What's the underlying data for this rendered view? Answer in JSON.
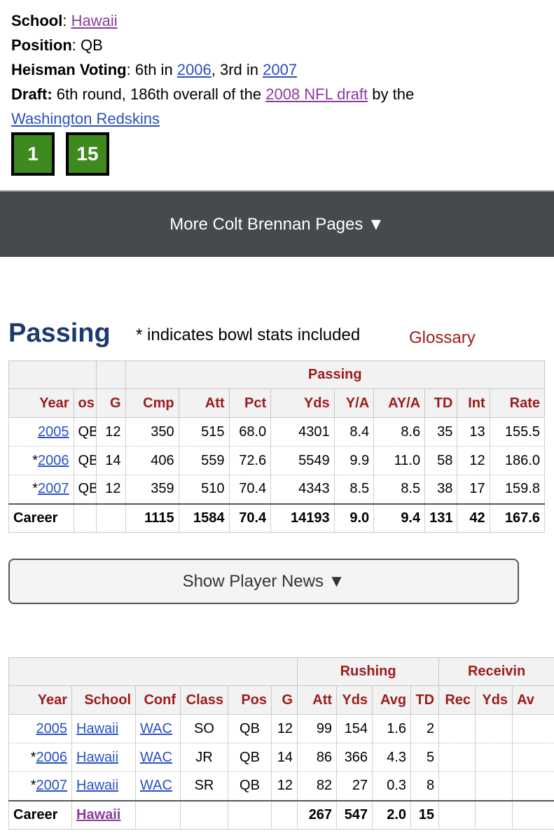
{
  "player": {
    "school_label": "School",
    "school": "Hawaii",
    "position_label": "Position",
    "position": "QB",
    "heisman_label": "Heisman Voting",
    "heisman_prefix1": "6th in ",
    "heisman_year1": "2006",
    "heisman_prefix2": ", 3rd in ",
    "heisman_year2": "2007",
    "draft_label": "Draft:",
    "draft_text": " 6th round, 186th overall of the ",
    "draft_link": "2008 NFL draft",
    "draft_by": " by the",
    "draft_team": "Washington Redskins",
    "badges": [
      "1",
      "15"
    ]
  },
  "more_pages": {
    "label": "More Colt Brennan Pages ▼"
  },
  "passing_section": {
    "title": "Passing",
    "note": "* indicates bowl stats included",
    "glossary": "Glossary"
  },
  "passing_table": {
    "over_header": "Passing",
    "headers": [
      "Year",
      "os",
      "G",
      "Cmp",
      "Att",
      "Pct",
      "Yds",
      "Y/A",
      "AY/A",
      "TD",
      "Int",
      "Rate"
    ],
    "rows": [
      {
        "mark": "",
        "year": "2005",
        "pos": "QB",
        "g": "12",
        "cmp": "350",
        "att": "515",
        "pct": "68.0",
        "yds": "4301",
        "ya": "8.4",
        "aya": "8.6",
        "td": "35",
        "int": "13",
        "rate": "155.5"
      },
      {
        "mark": "*",
        "year": "2006",
        "pos": "QB",
        "g": "14",
        "cmp": "406",
        "att": "559",
        "pct": "72.6",
        "yds": "5549",
        "ya": "9.9",
        "aya": "11.0",
        "td": "58",
        "int": "12",
        "rate": "186.0"
      },
      {
        "mark": "*",
        "year": "2007",
        "pos": "QB",
        "g": "12",
        "cmp": "359",
        "att": "510",
        "pct": "70.4",
        "yds": "4343",
        "ya": "8.5",
        "aya": "8.5",
        "td": "38",
        "int": "17",
        "rate": "159.8"
      }
    ],
    "career": {
      "label": "Career",
      "cmp": "1115",
      "att": "1584",
      "pct": "70.4",
      "yds": "14193",
      "ya": "9.0",
      "aya": "9.4",
      "td": "131",
      "int": "42",
      "rate": "167.6"
    }
  },
  "news_button": {
    "label": "Show Player News ▼"
  },
  "rushing_table": {
    "over_rushing": "Rushing",
    "over_receiving": "Receivin",
    "headers": [
      "Year",
      "School",
      "Conf",
      "Class",
      "Pos",
      "G",
      "Att",
      "Yds",
      "Avg",
      "TD",
      "Rec",
      "Yds",
      "Av"
    ],
    "rows": [
      {
        "mark": "",
        "year": "2005",
        "school": "Hawaii",
        "conf": "WAC",
        "class": "SO",
        "pos": "QB",
        "g": "12",
        "att": "99",
        "yds": "154",
        "avg": "1.6",
        "td": "2"
      },
      {
        "mark": "*",
        "year": "2006",
        "school": "Hawaii",
        "conf": "WAC",
        "class": "JR",
        "pos": "QB",
        "g": "14",
        "att": "86",
        "yds": "366",
        "avg": "4.3",
        "td": "5"
      },
      {
        "mark": "*",
        "year": "2007",
        "school": "Hawaii",
        "conf": "WAC",
        "class": "SR",
        "pos": "QB",
        "g": "12",
        "att": "82",
        "yds": "27",
        "avg": "0.3",
        "td": "8"
      }
    ],
    "career": {
      "label": "Career",
      "school": "Hawaii",
      "att": "267",
      "yds": "547",
      "avg": "2.0",
      "td": "15"
    }
  }
}
